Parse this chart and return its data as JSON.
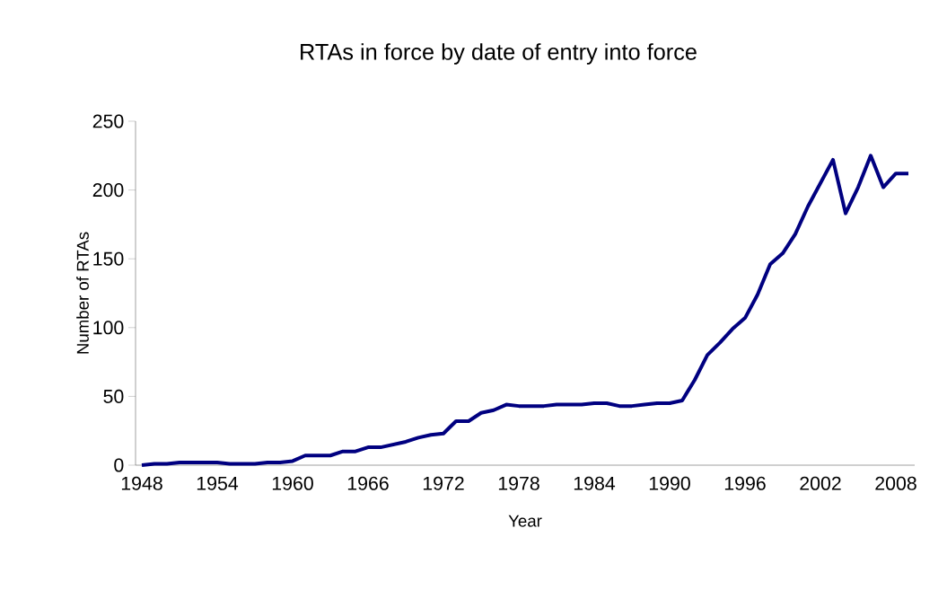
{
  "chart_data": {
    "type": "line",
    "title": "RTAs in force by date of entry into force",
    "xlabel": "Year",
    "ylabel": "Number of RTAs",
    "categories": [
      "1948",
      null,
      null,
      null,
      null,
      null,
      "1954",
      null,
      null,
      null,
      null,
      null,
      "1960",
      null,
      null,
      null,
      null,
      null,
      "1966",
      null,
      null,
      null,
      null,
      null,
      "1972",
      null,
      null,
      null,
      null,
      null,
      "1978",
      null,
      null,
      null,
      null,
      null,
      "1984",
      null,
      null,
      null,
      null,
      null,
      "1990",
      null,
      null,
      null,
      null,
      null,
      "1996",
      null,
      null,
      null,
      null,
      null,
      "2002",
      null,
      null,
      null,
      null,
      null,
      "2008",
      null
    ],
    "values": [
      0,
      1,
      1,
      2,
      2,
      2,
      2,
      1,
      1,
      1,
      2,
      2,
      3,
      7,
      7,
      7,
      10,
      10,
      13,
      13,
      15,
      17,
      20,
      22,
      23,
      32,
      32,
      38,
      40,
      44,
      43,
      43,
      43,
      44,
      44,
      44,
      45,
      45,
      43,
      43,
      44,
      45,
      45,
      47,
      62,
      80,
      89,
      99,
      107,
      124,
      146,
      154,
      168,
      188,
      205,
      222,
      183,
      202,
      225,
      202,
      212,
      212
    ],
    "color": "#000080",
    "ylim": [
      0,
      250
    ],
    "yticks": [
      0,
      50,
      100,
      150,
      200,
      250
    ]
  }
}
